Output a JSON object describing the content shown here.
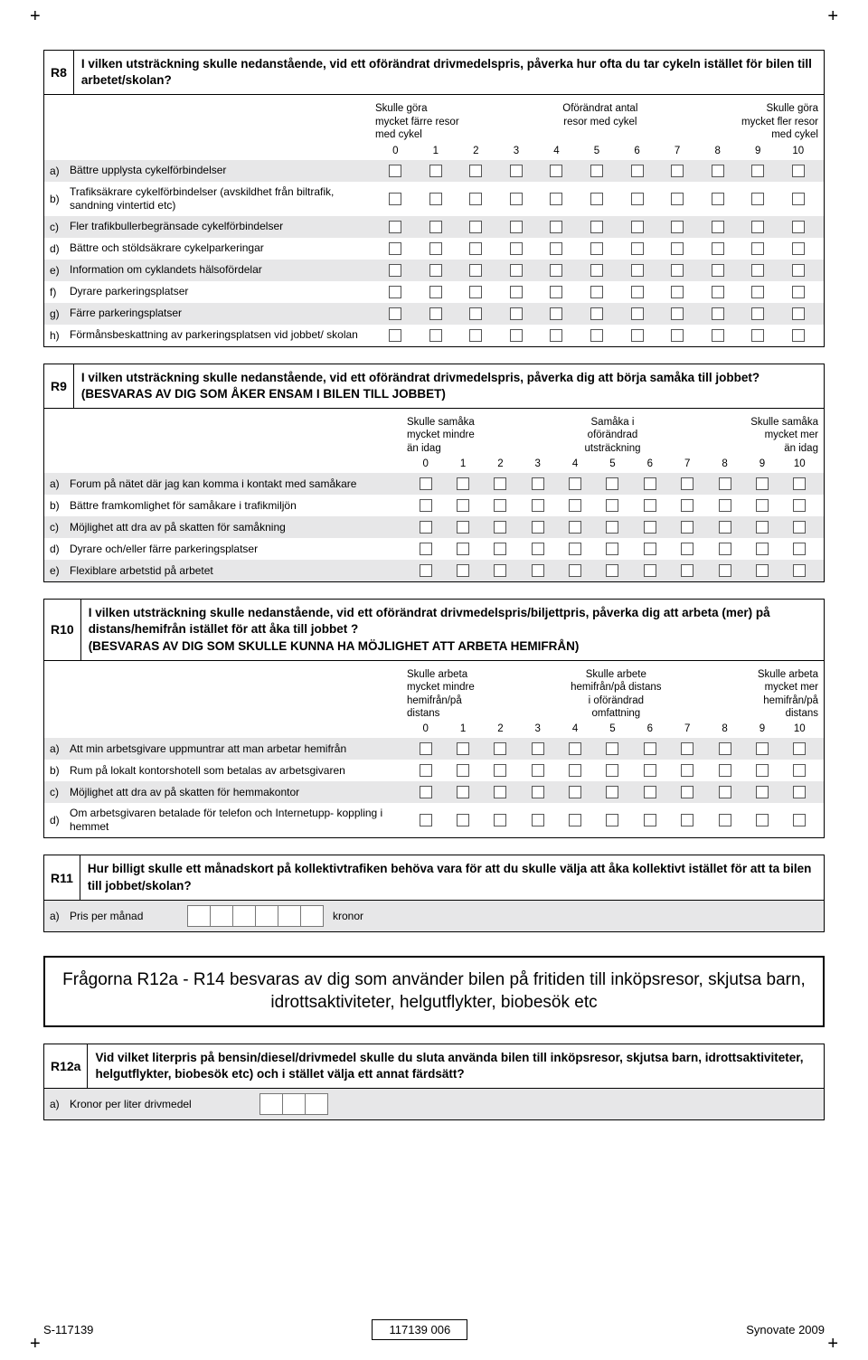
{
  "colors": {
    "shade": "#e7e7e8",
    "border": "#000000",
    "box_border": "#555555",
    "bg": "#ffffff"
  },
  "scale_numbers": [
    "0",
    "1",
    "2",
    "3",
    "4",
    "5",
    "6",
    "7",
    "8",
    "9",
    "10"
  ],
  "r8": {
    "num": "R8",
    "text": "I vilken utsträckning skulle nedanstående, vid ett oförändrat drivmedelspris, påverka hur ofta du tar cykeln istället för bilen till arbetet/skolan?",
    "hdr_left": "Skulle göra\nmycket färre resor\nmed cykel",
    "hdr_mid": "Oförändrat antal\nresor med cykel",
    "hdr_right": "Skulle göra\nmycket fler resor\nmed cykel",
    "items": [
      {
        "l": "a)",
        "t": "Bättre upplysta cykelförbindelser",
        "shade": true
      },
      {
        "l": "b)",
        "t": "Trafiksäkrare cykelförbindelser (avskildhet från biltrafik, sandning vintertid etc)",
        "shade": false
      },
      {
        "l": "c)",
        "t": "Fler trafikbullerbegränsade cykelförbindelser",
        "shade": true
      },
      {
        "l": "d)",
        "t": "Bättre och stöldsäkrare cykelparkeringar",
        "shade": false
      },
      {
        "l": "e)",
        "t": "Information om cyklandets hälsofördelar",
        "shade": true
      },
      {
        "l": "f)",
        "t": "Dyrare parkeringsplatser",
        "shade": false
      },
      {
        "l": "g)",
        "t": "Färre parkeringsplatser",
        "shade": true
      },
      {
        "l": "h)",
        "t": "Förmånsbeskattning av parkeringsplatsen vid jobbet/ skolan",
        "shade": false
      }
    ]
  },
  "r9": {
    "num": "R9",
    "text": "I vilken utsträckning skulle nedanstående, vid ett oförändrat drivmedelspris, påverka dig att börja samåka till jobbet?",
    "sub": "(BESVARAS AV DIG SOM ÅKER ENSAM I BILEN TILL JOBBET)",
    "hdr_left": "Skulle samåka\nmycket mindre\nän idag",
    "hdr_mid": "Samåka i\noförändrad\nutsträckning",
    "hdr_right": "Skulle samåka\nmycket mer\nän idag",
    "items": [
      {
        "l": "a)",
        "t": "Forum på nätet där jag kan komma i kontakt med samåkare",
        "shade": true
      },
      {
        "l": "b)",
        "t": "Bättre framkomlighet för samåkare i trafikmiljön",
        "shade": false
      },
      {
        "l": "c)",
        "t": "Möjlighet att dra av på skatten för samåkning",
        "shade": true
      },
      {
        "l": "d)",
        "t": "Dyrare och/eller färre parkeringsplatser",
        "shade": false
      },
      {
        "l": "e)",
        "t": "Flexiblare arbetstid på arbetet",
        "shade": true
      }
    ]
  },
  "r10": {
    "num": "R10",
    "text": "I vilken utsträckning skulle nedanstående, vid ett oförändrat drivmedelspris/biljettpris, påverka dig att arbeta (mer) på distans/hemifrån istället för att åka till jobbet ?",
    "sub": "(BESVARAS AV DIG SOM SKULLE KUNNA HA MÖJLIGHET ATT ARBETA HEMIFRÅN)",
    "hdr_left": "Skulle arbeta\nmycket mindre\nhemifrån/på\ndistans",
    "hdr_mid": "Skulle arbete\nhemifrån/på distans\ni oförändrad\nomfattning",
    "hdr_right": "Skulle arbeta\nmycket mer\nhemifrån/på\ndistans",
    "items": [
      {
        "l": "a)",
        "t": "Att min arbetsgivare uppmuntrar att man arbetar hemifrån",
        "shade": true
      },
      {
        "l": "b)",
        "t": "Rum på lokalt kontorshotell som betalas av arbetsgivaren",
        "shade": false
      },
      {
        "l": "c)",
        "t": "Möjlighet att dra av på skatten för hemmakontor",
        "shade": true
      },
      {
        "l": "d)",
        "t": "Om arbetsgivaren betalade för telefon och Internetupp- koppling i hemmet",
        "shade": false
      }
    ]
  },
  "r11": {
    "num": "R11",
    "text": "Hur billigt skulle ett månadskort på kollektivtrafiken behöva vara för att du skulle välja att åka kollektivt istället för att ta bilen till jobbet/skolan?",
    "row_letter": "a)",
    "row_label": "Pris per månad",
    "digits": 6,
    "unit": "kronor"
  },
  "section": "Frågorna R12a - R14 besvaras av dig som använder bilen på fritiden till inköpsresor, skjutsa barn, idrottsaktiviteter, helgutflykter, biobesök etc",
  "r12a": {
    "num": "R12a",
    "text": "Vid vilket literpris på bensin/diesel/drivmedel skulle du sluta använda bilen till inköpsresor, skjutsa barn, idrottsaktiviteter, helgutflykter, biobesök etc) och i stället välja ett annat färdsätt?",
    "row_letter": "a)",
    "row_label": "Kronor per liter drivmedel",
    "digits": 3
  },
  "footer": {
    "left": "S-117139",
    "mid": "117139 006",
    "right": "Synovate 2009"
  }
}
